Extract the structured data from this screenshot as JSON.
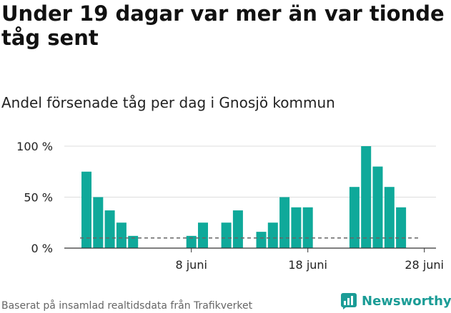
{
  "title": "Under 19 dagar var mer än var tionde tåg sent",
  "subtitle": "Andel försenade tåg per dag i Gnosjö kommun",
  "source": "Baserat på insamlad realtidsdata från Trafikverket",
  "brand": {
    "name": "Newsworthy",
    "logo_icon": "newsworthy-logo-icon"
  },
  "colors": {
    "bar": "#0fa99a",
    "reference_line": "#666666",
    "grid": "#dddddd",
    "axis": "#333333"
  },
  "chart_data": {
    "type": "bar",
    "x": [
      "2024-05-30",
      "2024-05-31",
      "2024-06-01",
      "2024-06-02",
      "2024-06-03",
      "2024-06-04",
      "2024-06-05",
      "2024-06-06",
      "2024-06-07",
      "2024-06-08",
      "2024-06-09",
      "2024-06-10",
      "2024-06-11",
      "2024-06-12",
      "2024-06-13",
      "2024-06-14",
      "2024-06-15",
      "2024-06-16",
      "2024-06-17",
      "2024-06-18",
      "2024-06-19",
      "2024-06-20",
      "2024-06-21",
      "2024-06-22",
      "2024-06-23",
      "2024-06-24",
      "2024-06-25",
      "2024-06-26",
      "2024-06-27",
      "2024-06-28"
    ],
    "values": [
      75,
      50,
      37,
      25,
      12,
      0,
      0,
      0,
      0,
      12,
      25,
      0,
      25,
      37,
      0,
      16,
      25,
      50,
      40,
      40,
      0,
      0,
      0,
      60,
      100,
      80,
      60,
      40,
      0,
      0
    ],
    "reference_value": 10,
    "yticks": [
      {
        "value": 0,
        "label": "0 %"
      },
      {
        "value": 50,
        "label": "50 %"
      },
      {
        "value": 100,
        "label": "100 %"
      }
    ],
    "xticks": [
      {
        "x": "2024-06-08",
        "label": "8 juni"
      },
      {
        "x": "2024-06-18",
        "label": "18 juni"
      },
      {
        "x": "2024-06-28",
        "label": "28 juni"
      }
    ],
    "ylim": [
      0,
      100
    ],
    "grid": true
  }
}
